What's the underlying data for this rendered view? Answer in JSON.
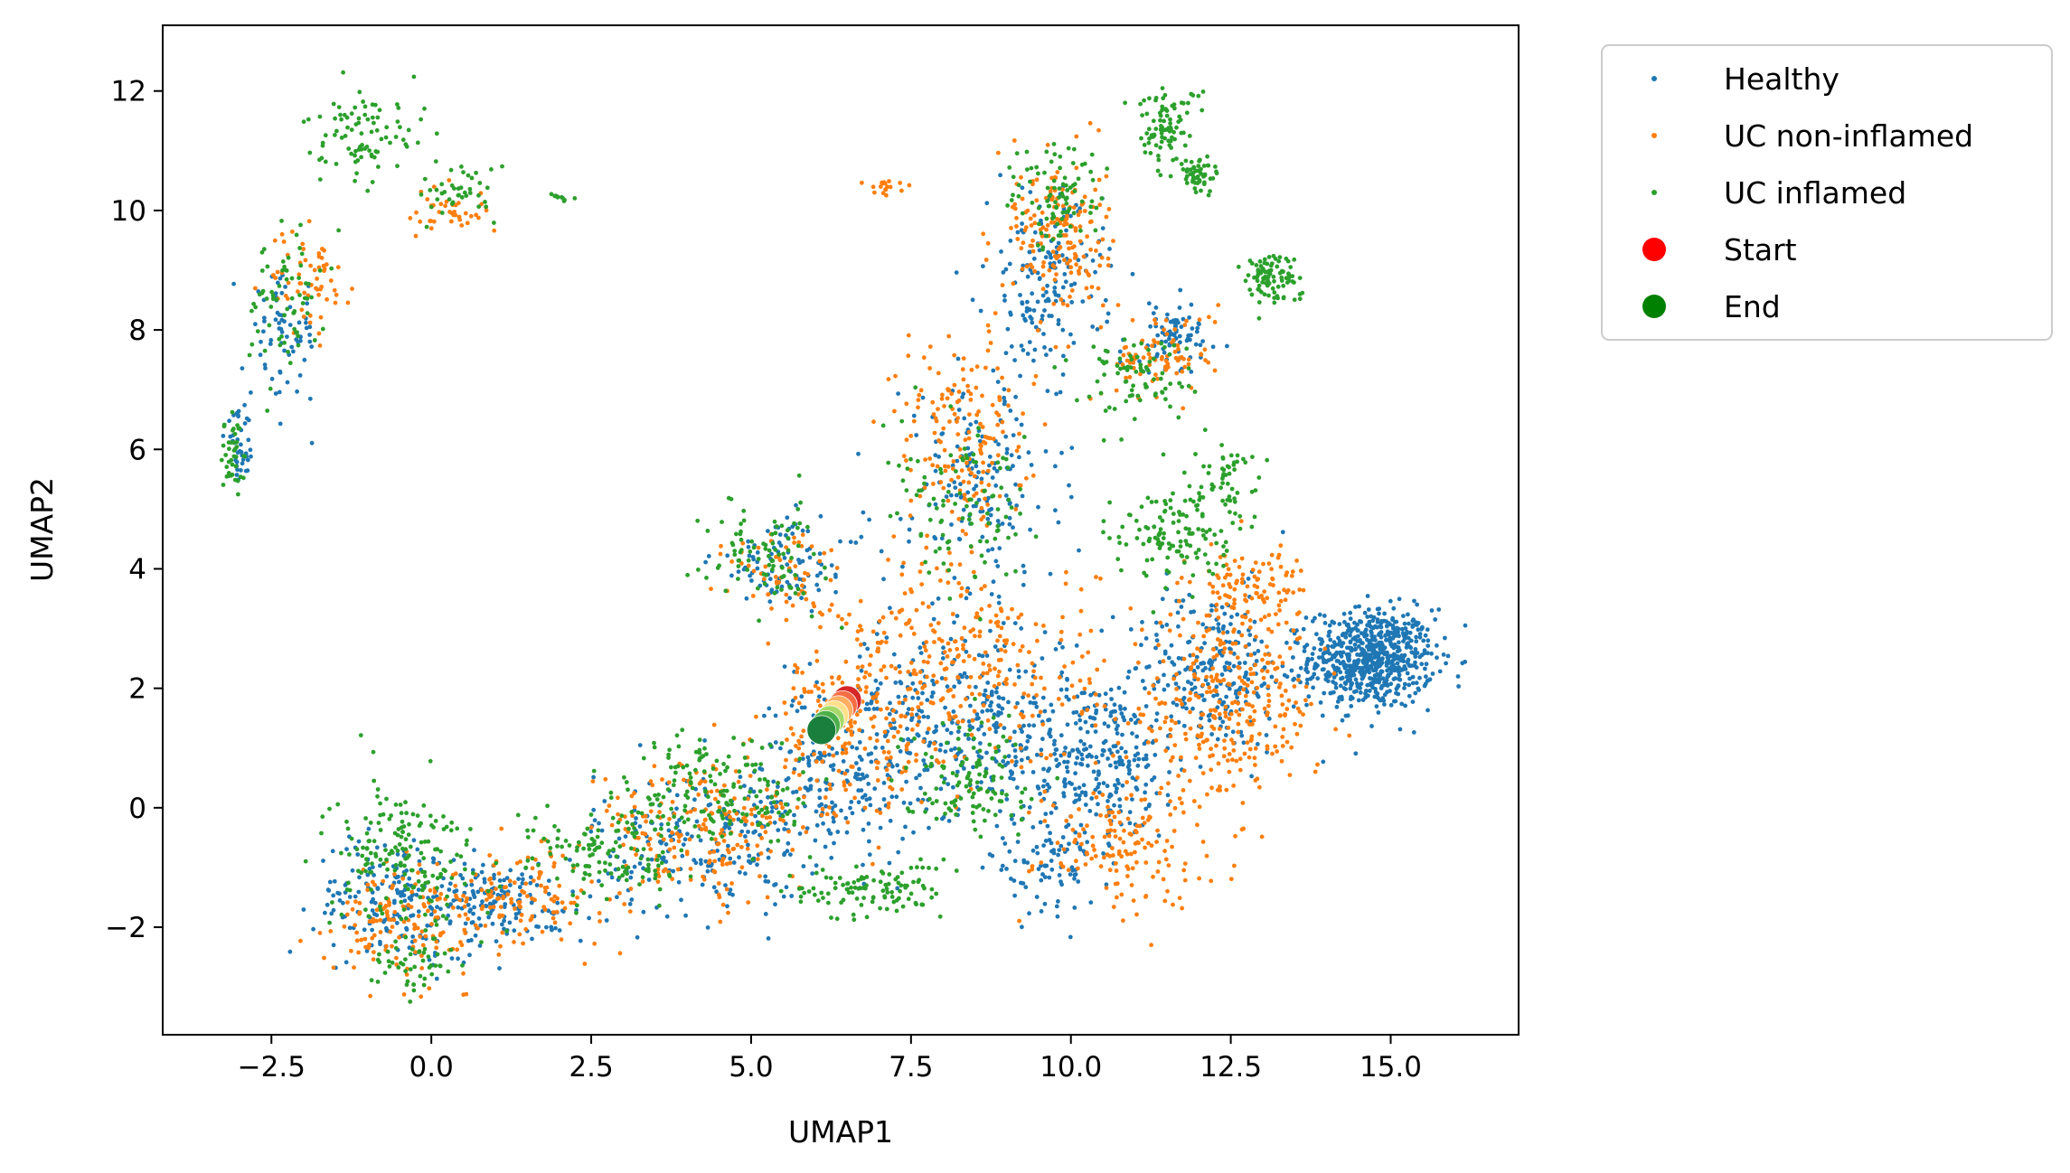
{
  "chart_data": {
    "type": "scatter",
    "xlabel": "UMAP1",
    "ylabel": "UMAP2",
    "xlim": [
      -4.2,
      17.0
    ],
    "ylim": [
      -3.8,
      13.1
    ],
    "x_ticks": [
      -2.5,
      0.0,
      2.5,
      5.0,
      7.5,
      10.0,
      12.5,
      15.0
    ],
    "x_tick_labels": [
      "−2.5",
      "0.0",
      "2.5",
      "5.0",
      "7.5",
      "10.0",
      "12.5",
      "15.0"
    ],
    "y_ticks": [
      -2,
      0,
      2,
      4,
      6,
      8,
      10,
      12
    ],
    "y_tick_labels": [
      "−2",
      "0",
      "2",
      "4",
      "6",
      "8",
      "10",
      "12"
    ],
    "grid": false,
    "legend": {
      "placement": "outside-top-right",
      "entries": [
        {
          "label": "Healthy",
          "color": "#1f77b4",
          "marker": "small-dot"
        },
        {
          "label": "UC non-inflamed",
          "color": "#ff7f0e",
          "marker": "small-dot"
        },
        {
          "label": "UC inflamed",
          "color": "#2ca02c",
          "marker": "small-dot"
        },
        {
          "label": "Start",
          "color": "#ff0000",
          "marker": "large-dot"
        },
        {
          "label": "End",
          "color": "#008000",
          "marker": "large-dot"
        }
      ]
    },
    "series": [
      {
        "name": "Healthy",
        "color": "#1f77b4",
        "clusters": [
          {
            "x": 14.7,
            "y": 2.5,
            "sx": 0.65,
            "sy": 0.55,
            "n": 700
          },
          {
            "x": 12.2,
            "y": 2.3,
            "sx": 0.9,
            "sy": 0.9,
            "n": 260
          },
          {
            "x": 10.3,
            "y": 0.8,
            "sx": 1.0,
            "sy": 0.9,
            "n": 300
          },
          {
            "x": 8.2,
            "y": 1.6,
            "sx": 1.3,
            "sy": 1.1,
            "n": 300
          },
          {
            "x": 6.3,
            "y": 0.5,
            "sx": 0.9,
            "sy": 1.0,
            "n": 200
          },
          {
            "x": 4.2,
            "y": -0.6,
            "sx": 1.1,
            "sy": 0.8,
            "n": 200
          },
          {
            "x": 1.0,
            "y": -1.6,
            "sx": 1.0,
            "sy": 0.5,
            "n": 160
          },
          {
            "x": -0.6,
            "y": -1.5,
            "sx": 0.8,
            "sy": 0.7,
            "n": 160
          },
          {
            "x": 8.6,
            "y": 5.5,
            "sx": 0.8,
            "sy": 1.2,
            "n": 160
          },
          {
            "x": 9.6,
            "y": 8.8,
            "sx": 0.6,
            "sy": 1.0,
            "n": 160
          },
          {
            "x": 11.6,
            "y": 7.9,
            "sx": 0.5,
            "sy": 0.4,
            "n": 80
          },
          {
            "x": 5.6,
            "y": 4.1,
            "sx": 0.8,
            "sy": 0.5,
            "n": 100
          },
          {
            "x": 9.6,
            "y": -1.0,
            "sx": 0.6,
            "sy": 0.5,
            "n": 80
          },
          {
            "x": -2.3,
            "y": 7.9,
            "sx": 0.35,
            "sy": 0.7,
            "n": 70
          },
          {
            "x": -3.0,
            "y": 6.0,
            "sx": 0.15,
            "sy": 0.4,
            "n": 40
          }
        ]
      },
      {
        "name": "UC non-inflamed",
        "color": "#ff7f0e",
        "clusters": [
          {
            "x": 12.4,
            "y": 1.6,
            "sx": 1.0,
            "sy": 1.0,
            "n": 300
          },
          {
            "x": 12.8,
            "y": 3.6,
            "sx": 0.6,
            "sy": 0.6,
            "n": 120
          },
          {
            "x": 10.8,
            "y": -0.6,
            "sx": 0.9,
            "sy": 0.7,
            "n": 150
          },
          {
            "x": 8.4,
            "y": 2.4,
            "sx": 1.3,
            "sy": 1.2,
            "n": 280
          },
          {
            "x": 6.5,
            "y": 1.2,
            "sx": 0.9,
            "sy": 1.0,
            "n": 200
          },
          {
            "x": 4.2,
            "y": -0.4,
            "sx": 1.1,
            "sy": 0.8,
            "n": 200
          },
          {
            "x": 1.2,
            "y": -1.5,
            "sx": 1.0,
            "sy": 0.5,
            "n": 140
          },
          {
            "x": -0.5,
            "y": -1.9,
            "sx": 0.7,
            "sy": 0.6,
            "n": 120
          },
          {
            "x": 8.3,
            "y": 6.2,
            "sx": 0.7,
            "sy": 1.2,
            "n": 170
          },
          {
            "x": 9.8,
            "y": 9.6,
            "sx": 0.5,
            "sy": 0.9,
            "n": 170
          },
          {
            "x": 11.4,
            "y": 7.6,
            "sx": 0.6,
            "sy": 0.5,
            "n": 90
          },
          {
            "x": 5.6,
            "y": 3.9,
            "sx": 0.6,
            "sy": 0.6,
            "n": 60
          },
          {
            "x": -1.9,
            "y": 8.8,
            "sx": 0.4,
            "sy": 0.6,
            "n": 60
          },
          {
            "x": 0.3,
            "y": 10.0,
            "sx": 0.5,
            "sy": 0.3,
            "n": 40
          },
          {
            "x": 7.1,
            "y": 10.4,
            "sx": 0.2,
            "sy": 0.1,
            "n": 18
          }
        ]
      },
      {
        "name": "UC inflamed",
        "color": "#2ca02c",
        "clusters": [
          {
            "x": 11.6,
            "y": 4.6,
            "sx": 0.6,
            "sy": 0.5,
            "n": 130
          },
          {
            "x": 12.4,
            "y": 5.6,
            "sx": 0.3,
            "sy": 0.4,
            "n": 50
          },
          {
            "x": 8.4,
            "y": 0.5,
            "sx": 0.7,
            "sy": 0.6,
            "n": 120
          },
          {
            "x": 13.1,
            "y": 8.9,
            "sx": 0.3,
            "sy": 0.3,
            "n": 90
          },
          {
            "x": 11.0,
            "y": 7.2,
            "sx": 0.6,
            "sy": 0.5,
            "n": 80
          },
          {
            "x": 11.5,
            "y": 11.4,
            "sx": 0.35,
            "sy": 0.45,
            "n": 90
          },
          {
            "x": 12.0,
            "y": 10.6,
            "sx": 0.2,
            "sy": 0.2,
            "n": 50
          },
          {
            "x": 9.8,
            "y": 10.2,
            "sx": 0.5,
            "sy": 0.6,
            "n": 90
          },
          {
            "x": 6.8,
            "y": -1.4,
            "sx": 0.8,
            "sy": 0.3,
            "n": 110
          },
          {
            "x": 4.6,
            "y": 0.3,
            "sx": 1.0,
            "sy": 0.7,
            "n": 170
          },
          {
            "x": 2.8,
            "y": -0.8,
            "sx": 0.8,
            "sy": 0.5,
            "n": 120
          },
          {
            "x": -0.4,
            "y": -0.8,
            "sx": 0.8,
            "sy": 0.8,
            "n": 180
          },
          {
            "x": -0.3,
            "y": -2.6,
            "sx": 0.4,
            "sy": 0.3,
            "n": 50
          },
          {
            "x": 5.2,
            "y": 4.3,
            "sx": 0.6,
            "sy": 0.6,
            "n": 90
          },
          {
            "x": 8.3,
            "y": 4.9,
            "sx": 0.8,
            "sy": 0.9,
            "n": 100
          },
          {
            "x": -1.0,
            "y": 11.2,
            "sx": 0.6,
            "sy": 0.5,
            "n": 90
          },
          {
            "x": -2.3,
            "y": 8.5,
            "sx": 0.4,
            "sy": 0.8,
            "n": 70
          },
          {
            "x": -3.1,
            "y": 5.9,
            "sx": 0.12,
            "sy": 0.5,
            "n": 40
          },
          {
            "x": 0.5,
            "y": 10.3,
            "sx": 0.4,
            "sy": 0.3,
            "n": 40
          },
          {
            "x": 2.0,
            "y": 10.2,
            "sx": 0.1,
            "sy": 0.05,
            "n": 10
          }
        ]
      }
    ],
    "trajectory": {
      "start": {
        "label": "Start",
        "x": 6.5,
        "y": 1.8,
        "color": "#d62728"
      },
      "end": {
        "label": "End",
        "x": 6.1,
        "y": 1.3,
        "color": "#1a7f3c"
      },
      "steps": 7
    }
  }
}
